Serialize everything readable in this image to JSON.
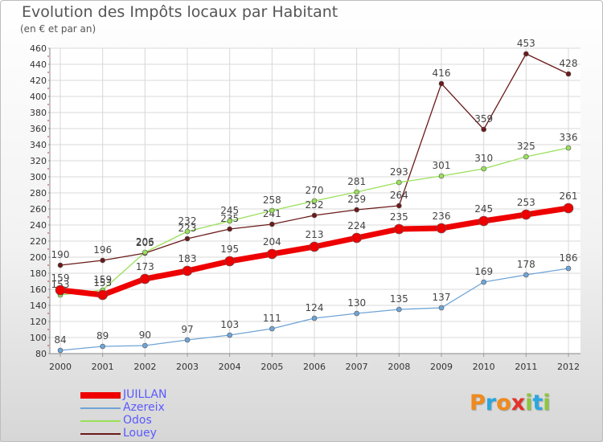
{
  "title": "Evolution des Impôts locaux par Habitant",
  "subtitle": "(en € et par an)",
  "logo": {
    "letters": [
      {
        "ch": "P",
        "color": "#f08a1c"
      },
      {
        "ch": "r",
        "color": "#2aa7e0"
      },
      {
        "ch": "o",
        "color": "#f08a1c"
      },
      {
        "ch": "x",
        "color": "#e4322b"
      },
      {
        "ch": "i",
        "color": "#8cc63f"
      },
      {
        "ch": "t",
        "color": "#2aa7e0"
      },
      {
        "ch": "i",
        "color": "#8cc63f"
      }
    ]
  },
  "chart_data": {
    "type": "line",
    "title": "Evolution des Impôts locaux par Habitant",
    "subtitle": "(en € et par an)",
    "categories": [
      "2000",
      "2001",
      "2002",
      "2003",
      "2004",
      "2005",
      "2006",
      "2007",
      "2008",
      "2009",
      "2010",
      "2011",
      "2012"
    ],
    "ylim": [
      80,
      460
    ],
    "yticks": [
      80,
      100,
      120,
      140,
      160,
      180,
      200,
      220,
      240,
      260,
      280,
      300,
      320,
      340,
      360,
      380,
      400,
      420,
      440,
      460
    ],
    "grid": true,
    "legend_position": "bottom-left",
    "series": [
      {
        "name": "Louey",
        "color": "#6b1a1a",
        "values": [
          190,
          196,
          205,
          223,
          235,
          241,
          252,
          259,
          264,
          416,
          359,
          453,
          428
        ]
      },
      {
        "name": "Odos",
        "color": "#99e05a",
        "values": [
          153,
          159,
          206,
          232,
          245,
          258,
          270,
          281,
          293,
          301,
          310,
          325,
          336
        ]
      },
      {
        "name": "Azereix",
        "color": "#6fa4d6",
        "values": [
          84,
          89,
          90,
          97,
          103,
          111,
          124,
          130,
          135,
          137,
          169,
          178,
          186
        ]
      },
      {
        "name": "JUILLAN",
        "color": "#ee0000",
        "values": [
          159,
          153,
          173,
          183,
          195,
          204,
          213,
          224,
          235,
          236,
          245,
          253,
          261
        ]
      }
    ],
    "legend_order": [
      "JUILLAN",
      "Azereix",
      "Odos",
      "Louey"
    ]
  }
}
